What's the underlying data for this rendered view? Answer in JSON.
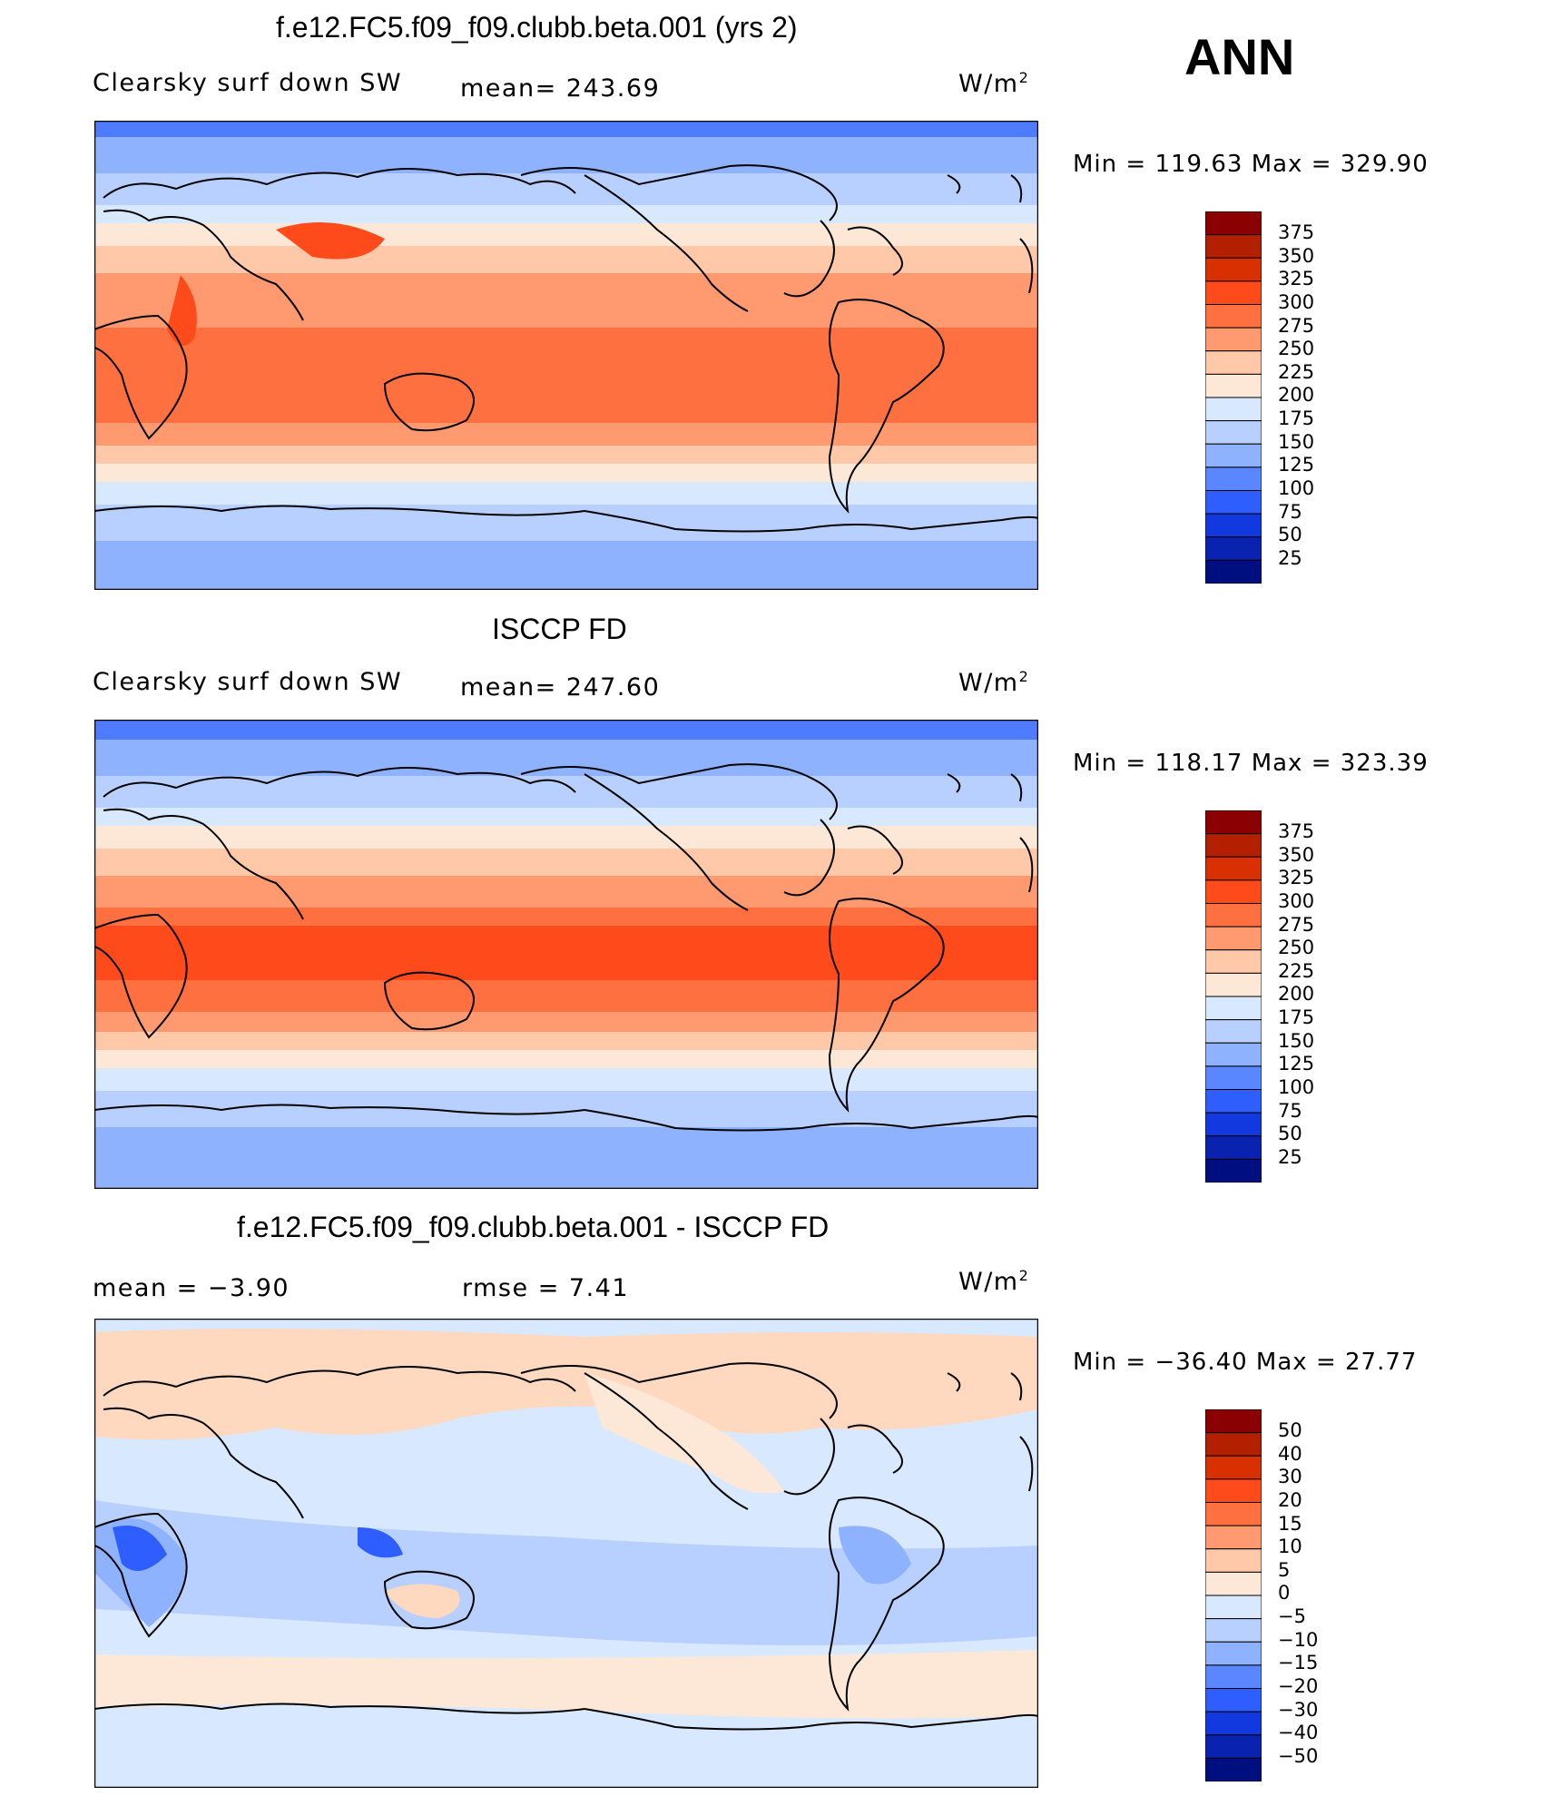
{
  "season": "ANN",
  "units": "W/m",
  "units_sup": "2",
  "panels": [
    {
      "title": "f.e12.FC5.f09_f09.clubb.beta.001 (yrs 2)",
      "left_label": "Clearsky surf down SW",
      "mean_text": "mean= 243.69",
      "minmax": "Min = 119.63 Max = 329.90",
      "kind": "model"
    },
    {
      "title": "ISCCP FD",
      "left_label": "Clearsky surf down SW",
      "mean_text": "mean= 247.60",
      "minmax": "Min = 118.17 Max = 323.39",
      "kind": "obs"
    },
    {
      "title": "f.e12.FC5.f09_f09.clubb.beta.001 - ISCCP FD",
      "left_label": "mean =    −3.90",
      "mean_text": "rmse =     7.41",
      "minmax": "Min = −36.40 Max =   27.77",
      "kind": "diff"
    }
  ],
  "colorbar_abs": {
    "levels": [
      "375",
      "350",
      "325",
      "300",
      "275",
      "250",
      "225",
      "200",
      "175",
      "150",
      "125",
      "100",
      "75",
      "50",
      "25"
    ],
    "colors": [
      "#8b0000",
      "#b22000",
      "#d93000",
      "#ff4a1c",
      "#ff7040",
      "#ff9a70",
      "#ffc8a8",
      "#fde8d8",
      "#d8e8ff",
      "#b8d0ff",
      "#8fb2ff",
      "#5a86ff",
      "#2f5eff",
      "#1238e0",
      "#0a22b0",
      "#000f80"
    ]
  },
  "colorbar_diff": {
    "levels": [
      "50",
      "40",
      "30",
      "20",
      "15",
      "10",
      "5",
      "0",
      "−5",
      "−10",
      "−15",
      "−20",
      "−30",
      "−40",
      "−50"
    ],
    "colors": [
      "#8b0000",
      "#b22000",
      "#d93000",
      "#ff4a1c",
      "#ff7040",
      "#ff9a70",
      "#ffc8a8",
      "#fde8d8",
      "#d8e8ff",
      "#b8d0ff",
      "#8fb2ff",
      "#5a86ff",
      "#2f5eff",
      "#1238e0",
      "#0a22b0",
      "#000f80"
    ]
  },
  "field_colors": {
    "polar": "#4f7bff",
    "subpolar": "#8fb2ff",
    "highlat": "#b8d0ff",
    "midlat_cool": "#d8e8ff",
    "midlat": "#fde8d8",
    "subtrop": "#ffc8a8",
    "warm": "#ff9a70",
    "tropic": "#ff7040",
    "hot": "#ff4a1c",
    "diff_pos": "#ffd8c0",
    "diff_light": "#fde8d8",
    "diff_neg1": "#d8e8ff",
    "diff_neg2": "#b8d0ff",
    "diff_neg3": "#8fb2ff",
    "diff_neg4": "#2f5eff"
  }
}
